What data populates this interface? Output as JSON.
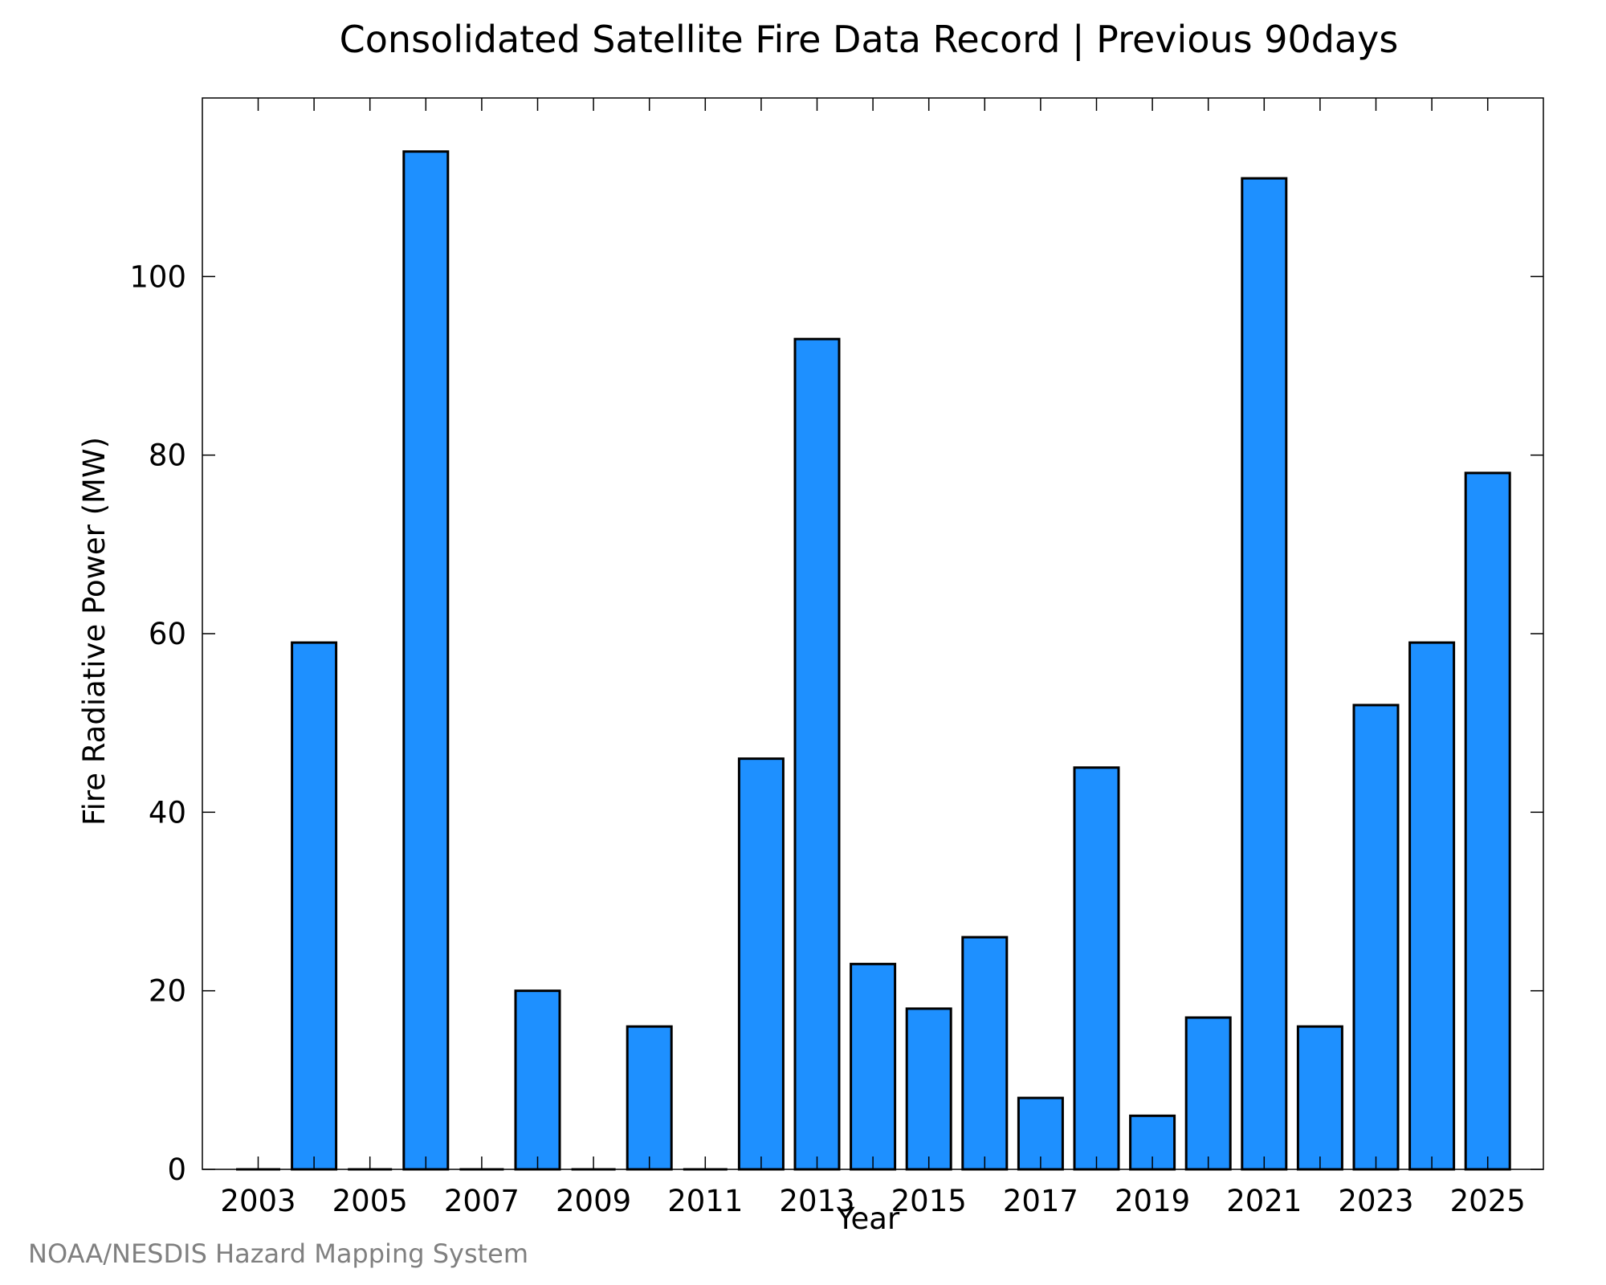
{
  "chart_data": {
    "type": "bar",
    "title": "Consolidated Satellite Fire Data Record | Previous 90days",
    "xlabel": "Year",
    "ylabel": "Fire Radiative Power (MW)",
    "categories": [
      "2003",
      "2004",
      "2005",
      "2006",
      "2007",
      "2008",
      "2009",
      "2010",
      "2011",
      "2012",
      "2013",
      "2014",
      "2015",
      "2016",
      "2017",
      "2018",
      "2019",
      "2020",
      "2021",
      "2022",
      "2023",
      "2024",
      "2025"
    ],
    "values": [
      0,
      59,
      0,
      114,
      0,
      20,
      0,
      16,
      0,
      46,
      93,
      23,
      18,
      26,
      8,
      45,
      6,
      17,
      111,
      16,
      52,
      59,
      78
    ],
    "x_tick_labels": [
      "2003",
      "2005",
      "2007",
      "2009",
      "2011",
      "2013",
      "2015",
      "2017",
      "2019",
      "2021",
      "2023",
      "2025"
    ],
    "y_ticks": [
      0,
      20,
      40,
      60,
      80,
      100
    ],
    "ylim": [
      0,
      120
    ],
    "grid": false,
    "legend": "none",
    "bar_color": "#1e90ff",
    "edge_color": "#000000"
  },
  "credit": "NOAA/NESDIS Hazard Mapping System"
}
